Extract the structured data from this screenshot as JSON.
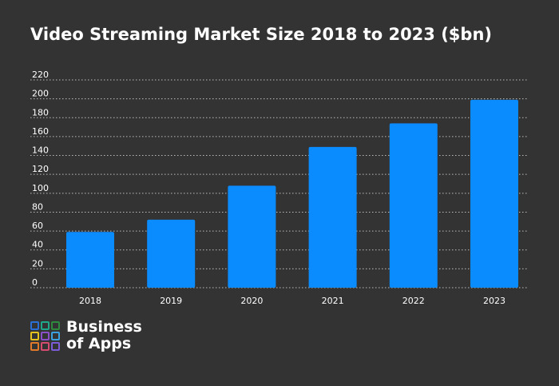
{
  "chart_data": {
    "type": "bar",
    "title": "Video Streaming Market Size 2018 to 2023 ($bn)",
    "categories": [
      "2018",
      "2019",
      "2020",
      "2021",
      "2022",
      "2023"
    ],
    "values": [
      59,
      72,
      108,
      149,
      174,
      199
    ],
    "ylim": [
      0,
      220
    ],
    "yticks": [
      0,
      20,
      40,
      60,
      80,
      100,
      120,
      140,
      160,
      180,
      200,
      220
    ],
    "grid": true,
    "bar_color": "#0a8cff",
    "background_color": "#333333"
  },
  "logo": {
    "line1": "Business",
    "line2": "of Apps",
    "colors": [
      "#2a6fd6",
      "#1fa88a",
      "#2e8b3d",
      "#e6c21f",
      "#8a4fc9",
      "#3aa0e0",
      "#e07a2a",
      "#d64b6e",
      "#7c5cd6"
    ]
  }
}
